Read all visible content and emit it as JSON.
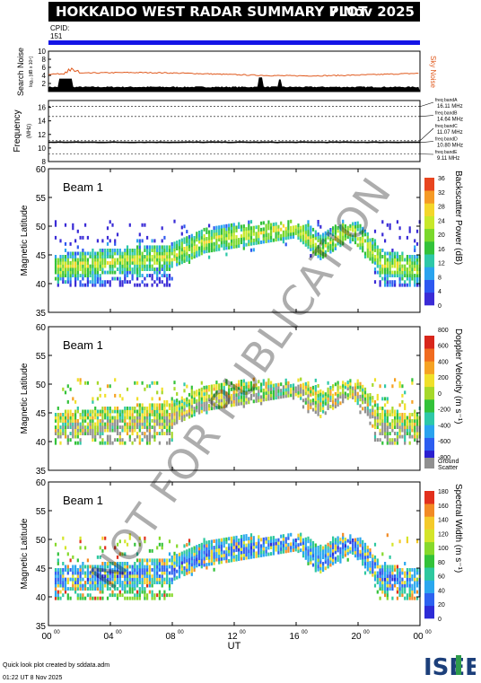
{
  "header": {
    "title": "HOKKAIDO WEST RADAR SUMMARY PLOT",
    "date": "7 Nov 2025",
    "cpid_label": "CPID:",
    "cpid_value": "151"
  },
  "noise_panel": {
    "ylabel": "Search Noise",
    "ylabel_sub": "log₁₀ [dB x 10⁴]",
    "legend": "Sky Noise",
    "yticks": [
      "2",
      "4",
      "6",
      "8",
      "10"
    ],
    "ylim": [
      0,
      10
    ],
    "sky_color": "#e05a1e"
  },
  "freq_panel": {
    "ylabel": "Frequency",
    "ylabel_sub": "(MHz)",
    "yticks": [
      "8",
      "10",
      "12",
      "14",
      "16"
    ],
    "ylim": [
      8,
      17
    ],
    "bands": [
      {
        "name": "freq bandA",
        "value": "16.11 MHz",
        "mhz": 16.11
      },
      {
        "name": "freq bandB",
        "value": "14.64 MHz",
        "mhz": 14.64
      },
      {
        "name": "freq bandC",
        "value": "11.07 MHz",
        "mhz": 11.07
      },
      {
        "name": "freq bandD",
        "value": "10.80 MHz",
        "mhz": 10.8
      },
      {
        "name": "freq bandE",
        "value": "9.11 MHz",
        "mhz": 9.11
      }
    ]
  },
  "chart_data": [
    {
      "type": "heatmap",
      "panel": "power",
      "beam_label": "Beam  1",
      "ylabel": "Magnetic Latitude",
      "ylim": [
        35,
        60
      ],
      "yticks": [
        "35",
        "40",
        "45",
        "50",
        "55",
        "60"
      ],
      "colorbar_label": "Backscatter Power (dB)",
      "colorbar_ticks": [
        "0",
        "4",
        "8",
        "12",
        "16",
        "20",
        "24",
        "28",
        "32",
        "36"
      ]
    },
    {
      "type": "heatmap",
      "panel": "velocity",
      "beam_label": "Beam  1",
      "ylabel": "Magnetic Latitude",
      "ylim": [
        35,
        60
      ],
      "yticks": [
        "35",
        "40",
        "45",
        "50",
        "55",
        "60"
      ],
      "colorbar_label": "Doppler Velocity (m s⁻¹)",
      "colorbar_ticks": [
        "-800",
        "-600",
        "-400",
        "-200",
        "0",
        "200",
        "400",
        "600",
        "800"
      ],
      "ground_scatter_label": [
        "Ground",
        "Scatter"
      ]
    },
    {
      "type": "heatmap",
      "panel": "width",
      "beam_label": "Beam  1",
      "ylabel": "Magnetic Latitude",
      "ylim": [
        35,
        60
      ],
      "yticks": [
        "35",
        "40",
        "45",
        "50",
        "55",
        "60"
      ],
      "colorbar_label": "Spectral Width (m s⁻¹)",
      "colorbar_ticks": [
        "0",
        "20",
        "40",
        "60",
        "80",
        "100",
        "120",
        "140",
        "160",
        "180"
      ]
    }
  ],
  "xaxis": {
    "label": "UT",
    "ticks": [
      "00",
      "04",
      "08",
      "12",
      "16",
      "20",
      "00"
    ],
    "tick_sup": "00",
    "xlim_hours": [
      0,
      24
    ]
  },
  "footer": {
    "line1": "Quick look plot created by sddata.adm",
    "line2": "01:22 UT  8 Nov 2025"
  },
  "logo": {
    "text": "ISEE"
  },
  "watermark": "NOT FOR PUBLICATION"
}
